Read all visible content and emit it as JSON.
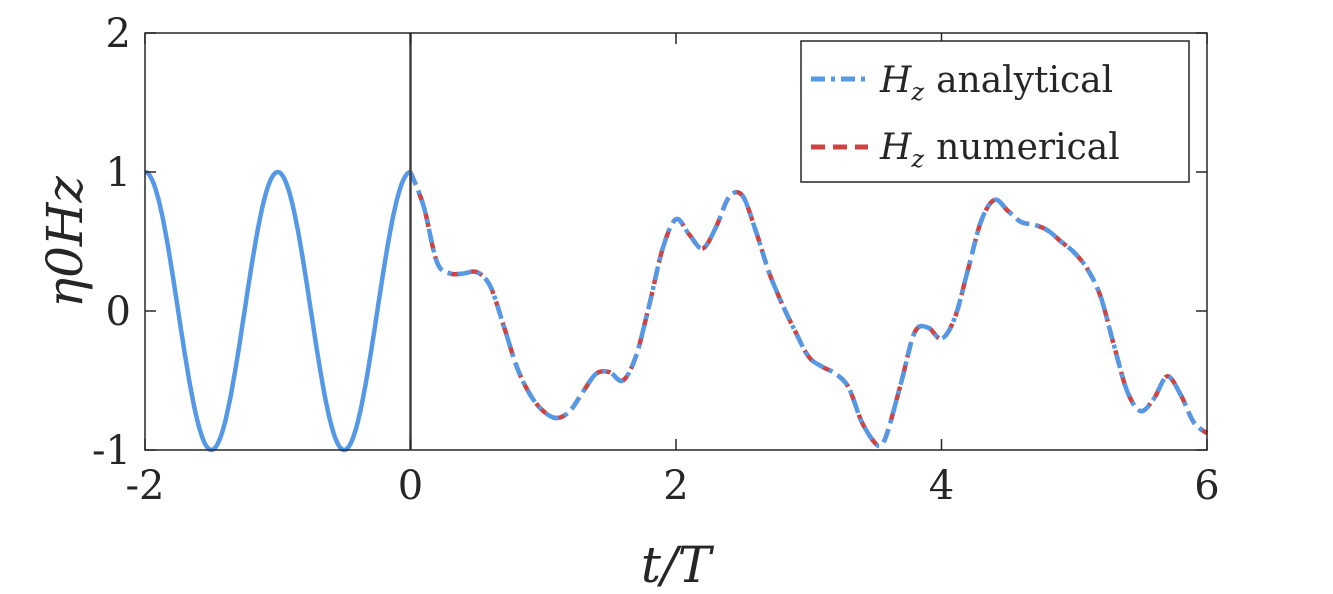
{
  "chart_data": {
    "type": "line",
    "xlabel": "t/T",
    "ylabel": "η0Hz",
    "xlim": [
      -2,
      6
    ],
    "ylim": [
      -1,
      2
    ],
    "xticks": [
      -2,
      0,
      2,
      4,
      6
    ],
    "yticks": [
      -1,
      0,
      1,
      2
    ],
    "xtick_labels": [
      "-2",
      "0",
      "2",
      "4",
      "6"
    ],
    "ytick_labels": [
      "-1",
      "0",
      "1",
      "2"
    ],
    "grid": false,
    "legend_position": "top-right",
    "vertical_marker_x": 0,
    "series": [
      {
        "name": "Hz analytical",
        "name_main": "H",
        "name_sub": "z",
        "name_rest": "analytical",
        "color": "#5599e6",
        "style": "solid-then-dashdot",
        "x": [
          -2.0,
          -1.75,
          -1.5,
          -1.25,
          -1.0,
          -0.75,
          -0.5,
          -0.25,
          0.0,
          0.1,
          0.2,
          0.3,
          0.4,
          0.5,
          0.6,
          0.7,
          0.8,
          0.9,
          1.0,
          1.1,
          1.2,
          1.3,
          1.4,
          1.5,
          1.6,
          1.7,
          1.8,
          1.9,
          2.0,
          2.1,
          2.2,
          2.3,
          2.4,
          2.5,
          2.6,
          2.7,
          2.8,
          2.9,
          3.0,
          3.1,
          3.2,
          3.3,
          3.4,
          3.5,
          3.55,
          3.6,
          3.7,
          3.8,
          3.9,
          4.0,
          4.1,
          4.2,
          4.3,
          4.4,
          4.5,
          4.6,
          4.7,
          4.8,
          4.9,
          5.0,
          5.1,
          5.2,
          5.3,
          5.4,
          5.5,
          5.6,
          5.7,
          5.8,
          5.9,
          6.0
        ],
        "y": [
          1.0,
          0.0,
          -1.0,
          0.0,
          1.0,
          0.0,
          -1.0,
          0.0,
          1.0,
          0.75,
          0.35,
          0.27,
          0.27,
          0.28,
          0.18,
          -0.1,
          -0.4,
          -0.6,
          -0.72,
          -0.77,
          -0.72,
          -0.58,
          -0.45,
          -0.44,
          -0.5,
          -0.32,
          0.05,
          0.45,
          0.66,
          0.55,
          0.45,
          0.6,
          0.82,
          0.83,
          0.58,
          0.28,
          0.05,
          -0.15,
          -0.33,
          -0.4,
          -0.45,
          -0.55,
          -0.8,
          -0.95,
          -0.96,
          -0.85,
          -0.5,
          -0.15,
          -0.12,
          -0.2,
          -0.05,
          0.3,
          0.65,
          0.8,
          0.72,
          0.64,
          0.62,
          0.58,
          0.5,
          0.42,
          0.3,
          0.1,
          -0.25,
          -0.58,
          -0.72,
          -0.63,
          -0.47,
          -0.6,
          -0.8,
          -0.88
        ]
      },
      {
        "name": "Hz numerical",
        "name_main": "H",
        "name_sub": "z",
        "name_rest": "numerical",
        "color": "#cc4444",
        "style": "dashed",
        "x": [
          0.0,
          0.1,
          0.2,
          0.3,
          0.4,
          0.5,
          0.6,
          0.7,
          0.8,
          0.9,
          1.0,
          1.1,
          1.2,
          1.3,
          1.4,
          1.5,
          1.6,
          1.7,
          1.8,
          1.9,
          2.0,
          2.1,
          2.2,
          2.3,
          2.4,
          2.5,
          2.6,
          2.7,
          2.8,
          2.9,
          3.0,
          3.1,
          3.2,
          3.3,
          3.4,
          3.5,
          3.55,
          3.6,
          3.7,
          3.8,
          3.9,
          4.0,
          4.1,
          4.2,
          4.3,
          4.4,
          4.5,
          4.6,
          4.7,
          4.8,
          4.9,
          5.0,
          5.1,
          5.2,
          5.3,
          5.4,
          5.5,
          5.6,
          5.7,
          5.8,
          5.9,
          6.0
        ],
        "y": [
          1.0,
          0.75,
          0.35,
          0.27,
          0.27,
          0.28,
          0.18,
          -0.1,
          -0.4,
          -0.6,
          -0.72,
          -0.77,
          -0.72,
          -0.58,
          -0.45,
          -0.44,
          -0.5,
          -0.32,
          0.05,
          0.45,
          0.66,
          0.55,
          0.45,
          0.6,
          0.82,
          0.83,
          0.58,
          0.28,
          0.05,
          -0.15,
          -0.33,
          -0.4,
          -0.45,
          -0.55,
          -0.8,
          -0.95,
          -0.96,
          -0.85,
          -0.5,
          -0.15,
          -0.12,
          -0.2,
          -0.05,
          0.3,
          0.65,
          0.8,
          0.72,
          0.64,
          0.62,
          0.58,
          0.5,
          0.42,
          0.3,
          0.1,
          -0.25,
          -0.58,
          -0.72,
          -0.63,
          -0.47,
          -0.6,
          -0.8,
          -0.88
        ]
      }
    ]
  }
}
